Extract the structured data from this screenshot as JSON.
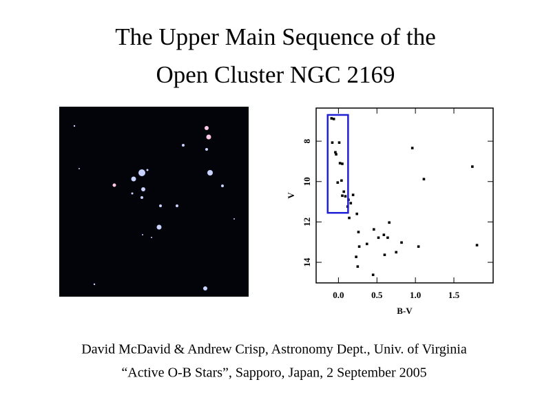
{
  "title_lines": [
    "The Upper Main Sequence of the",
    "Open Cluster NGC 2169"
  ],
  "chart_data": {
    "type": "scatter",
    "xlabel": "B-V",
    "ylabel": "V",
    "x": [
      -0.09,
      -0.06,
      -0.08,
      0.01,
      -0.04,
      -0.03,
      0.02,
      0.05,
      0.04,
      -0.01,
      0.07,
      0.05,
      0.09,
      0.13,
      0.16,
      0.12,
      0.19,
      0.24,
      0.14,
      0.96,
      1.74,
      1.11,
      0.66,
      0.46,
      0.26,
      0.59,
      0.52,
      0.64,
      0.82,
      0.37,
      0.27,
      1.04,
      1.8,
      0.6,
      0.75,
      0.23,
      0.25,
      0.45
    ],
    "y": [
      6.87,
      6.9,
      8.07,
      8.07,
      8.55,
      8.65,
      9.09,
      9.12,
      9.95,
      10.05,
      10.5,
      10.7,
      10.73,
      10.9,
      11.07,
      11.24,
      10.66,
      11.6,
      11.8,
      8.34,
      9.26,
      9.88,
      12.03,
      12.37,
      12.5,
      12.64,
      12.78,
      12.78,
      13.02,
      13.09,
      13.22,
      13.22,
      13.15,
      13.63,
      13.5,
      13.73,
      14.21,
      14.62
    ],
    "color": "#000000",
    "xlim": [
      -0.29,
      2.01
    ],
    "ylim": [
      6.36,
      15.02
    ],
    "y_inverted": true,
    "xticks": [
      {
        "value": 0,
        "label": "0.0"
      },
      0.5,
      {
        "value": 1,
        "label": "1.0"
      },
      1.5
    ],
    "yticks": [
      8,
      10,
      12,
      14
    ],
    "highlight_box": {
      "x": [
        -0.14,
        0.125
      ],
      "y": [
        6.7,
        11.55
      ],
      "color": "#1f1fd6"
    }
  },
  "footer_lines": [
    "David McDavid & Andrew Crisp, Astronomy Dept., Univ. of Virginia",
    "“Active O-B Stars”, Sapporo, Japan, 2 September 2005"
  ]
}
